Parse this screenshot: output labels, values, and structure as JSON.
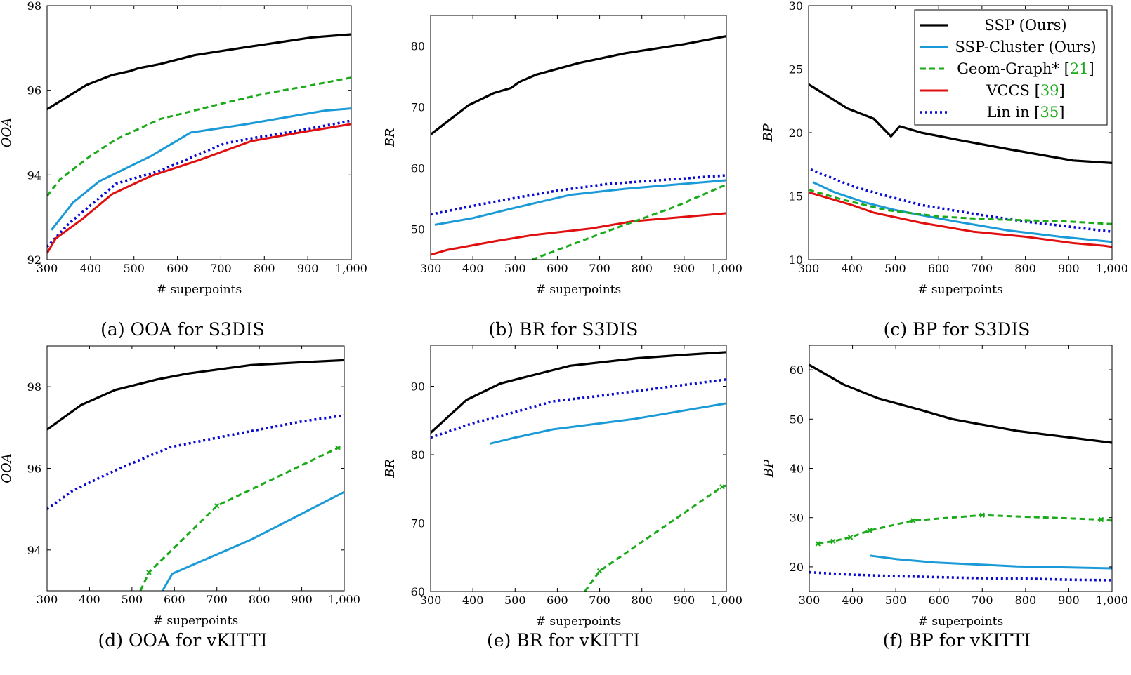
{
  "colors": {
    "ssp": "#000000",
    "ssp_cluster": "#1a9ad6",
    "geom_graph": "#1aaa1a",
    "vccs": "#e01010",
    "lin": "#0a0ad0",
    "citation": "#1aaa1a"
  },
  "legend": {
    "items": [
      {
        "key": "ssp",
        "text": "SSP (Ours)",
        "cite": ""
      },
      {
        "key": "ssp_cluster",
        "text": "SSP-Cluster (Ours)",
        "cite": ""
      },
      {
        "key": "geom_graph",
        "text": "Geom-Graph* [",
        "cite": "21"
      },
      {
        "key": "vccs",
        "text": "VCCS [",
        "cite": "39"
      },
      {
        "key": "lin",
        "text": "Lin in [",
        "cite": "35"
      }
    ]
  },
  "chart_data": [
    {
      "type": "line",
      "id": "a",
      "title": "(a) OOA for S3DIS",
      "xlabel": "# superpoints",
      "ylabel": "OOA",
      "xlim": [
        300,
        1000
      ],
      "ylim": [
        92,
        98
      ],
      "xticks": [
        300,
        400,
        500,
        600,
        700,
        800,
        900,
        1000
      ],
      "xtick_labels": [
        "300",
        "400",
        "500",
        "600",
        "700",
        "800",
        "900",
        "1,000"
      ],
      "yticks": [
        92,
        94,
        96,
        98
      ],
      "ytick_labels": [
        "92",
        "94",
        "96",
        "98"
      ],
      "series": [
        {
          "name": "SSP (Ours)",
          "key": "ssp",
          "x": [
            300,
            390,
            450,
            490,
            510,
            560,
            640,
            760,
            910,
            1000
          ],
          "y": [
            95.55,
            96.12,
            96.36,
            96.45,
            96.52,
            96.62,
            96.83,
            97.02,
            97.25,
            97.32
          ]
        },
        {
          "name": "Geom-Graph*",
          "key": "geom_graph",
          "x": [
            300,
            330,
            400,
            460,
            560,
            700,
            800,
            900,
            1000
          ],
          "y": [
            93.5,
            93.9,
            94.45,
            94.85,
            95.32,
            95.68,
            95.92,
            96.1,
            96.3
          ]
        },
        {
          "name": "SSP-Cluster (Ours)",
          "key": "ssp_cluster",
          "x": [
            310,
            360,
            420,
            540,
            630,
            760,
            860,
            940,
            1000
          ],
          "y": [
            92.7,
            93.35,
            93.85,
            94.45,
            95.0,
            95.2,
            95.38,
            95.52,
            95.57
          ]
        },
        {
          "name": "Lin in",
          "key": "lin",
          "x": [
            300,
            350,
            460,
            560,
            710,
            780,
            880,
            1000
          ],
          "y": [
            92.3,
            92.85,
            93.8,
            94.1,
            94.75,
            94.88,
            95.05,
            95.28
          ]
        },
        {
          "name": "VCCS",
          "key": "vccs",
          "x": [
            300,
            320,
            380,
            450,
            540,
            650,
            770,
            880,
            1000
          ],
          "y": [
            92.15,
            92.5,
            92.95,
            93.55,
            93.98,
            94.35,
            94.8,
            95.0,
            95.2
          ]
        }
      ]
    },
    {
      "type": "line",
      "id": "b",
      "title": "(b) BR for S3DIS",
      "xlabel": "# superpoints",
      "ylabel": "BR",
      "xlim": [
        300,
        1000
      ],
      "ylim": [
        45,
        85
      ],
      "xticks": [
        300,
        400,
        500,
        600,
        700,
        800,
        900,
        1000
      ],
      "xtick_labels": [
        "300",
        "400",
        "500",
        "600",
        "700",
        "800",
        "900",
        "1,000"
      ],
      "yticks": [
        50,
        60,
        70,
        80
      ],
      "ytick_labels": [
        "50",
        "60",
        "70",
        "80"
      ],
      "series": [
        {
          "name": "SSP (Ours)",
          "key": "ssp",
          "x": [
            300,
            390,
            450,
            470,
            490,
            510,
            550,
            650,
            760,
            900,
            1000
          ],
          "y": [
            65.5,
            70.3,
            72.3,
            72.7,
            73.1,
            74.1,
            75.3,
            77.2,
            78.8,
            80.3,
            81.6
          ]
        },
        {
          "name": "Lin in",
          "key": "lin",
          "x": [
            300,
            400,
            500,
            600,
            720,
            800,
            900,
            1000
          ],
          "y": [
            52.4,
            53.8,
            55.1,
            56.3,
            57.4,
            57.8,
            58.3,
            58.8
          ]
        },
        {
          "name": "SSP-Cluster (Ours)",
          "key": "ssp_cluster",
          "x": [
            310,
            400,
            500,
            630,
            760,
            880,
            1000
          ],
          "y": [
            50.7,
            51.8,
            53.5,
            55.6,
            56.6,
            57.3,
            58.0
          ]
        },
        {
          "name": "VCCS",
          "key": "vccs",
          "x": [
            300,
            340,
            460,
            540,
            680,
            780,
            900,
            1000
          ],
          "y": [
            45.8,
            46.6,
            48.1,
            49.0,
            50.1,
            51.3,
            52.0,
            52.6
          ]
        },
        {
          "name": "Geom-Graph*",
          "key": "geom_graph",
          "x": [
            540,
            720,
            880,
            1000
          ],
          "y": [
            45.0,
            49.7,
            53.7,
            57.3
          ]
        }
      ]
    },
    {
      "type": "line",
      "id": "c",
      "title": "(c) BP for S3DIS",
      "xlabel": "# superpoints",
      "ylabel": "BP",
      "xlim": [
        300,
        1000
      ],
      "ylim": [
        10,
        30
      ],
      "xticks": [
        300,
        400,
        500,
        600,
        700,
        800,
        900,
        1000
      ],
      "xtick_labels": [
        "300",
        "400",
        "500",
        "600",
        "700",
        "800",
        "900",
        "1,000"
      ],
      "yticks": [
        10,
        15,
        20,
        25,
        30
      ],
      "ytick_labels": [
        "10",
        "15",
        "20",
        "25",
        "30"
      ],
      "series": [
        {
          "name": "SSP (Ours)",
          "key": "ssp",
          "x": [
            300,
            390,
            450,
            490,
            510,
            560,
            650,
            760,
            910,
            1000
          ],
          "y": [
            23.8,
            21.9,
            21.1,
            19.7,
            20.5,
            20.0,
            19.4,
            18.7,
            17.8,
            17.6
          ]
        },
        {
          "name": "Lin in",
          "key": "lin",
          "x": [
            305,
            400,
            460,
            560,
            700,
            800,
            900,
            1000
          ],
          "y": [
            17.1,
            15.8,
            15.2,
            14.3,
            13.5,
            13.0,
            12.6,
            12.2
          ]
        },
        {
          "name": "SSP-Cluster (Ours)",
          "key": "ssp_cluster",
          "x": [
            310,
            360,
            430,
            500,
            560,
            640,
            760,
            880,
            1000
          ],
          "y": [
            16.1,
            15.3,
            14.5,
            13.9,
            13.5,
            13.0,
            12.3,
            11.8,
            11.4
          ]
        },
        {
          "name": "Geom-Graph*",
          "key": "geom_graph",
          "x": [
            300,
            380,
            480,
            600,
            700,
            800,
            900,
            1000
          ],
          "y": [
            15.5,
            14.7,
            13.9,
            13.4,
            13.2,
            13.1,
            13.0,
            12.8
          ]
        },
        {
          "name": "VCCS",
          "key": "vccs",
          "x": [
            300,
            400,
            450,
            560,
            680,
            800,
            910,
            980,
            1000
          ],
          "y": [
            15.3,
            14.3,
            13.7,
            12.9,
            12.2,
            11.8,
            11.3,
            11.1,
            11.0
          ]
        }
      ]
    },
    {
      "type": "line",
      "id": "d",
      "title": "(d) OOA for vKITTI",
      "xlabel": "# superpoints",
      "ylabel": "OOA",
      "xlim": [
        300,
        1000
      ],
      "ylim": [
        93,
        99
      ],
      "xticks": [
        300,
        400,
        500,
        600,
        700,
        800,
        900,
        1000
      ],
      "xtick_labels": [
        "300",
        "400",
        "500",
        "600",
        "700",
        "800",
        "900",
        "1,000"
      ],
      "yticks": [
        94,
        96,
        98
      ],
      "ytick_labels": [
        "94",
        "96",
        "98"
      ],
      "series": [
        {
          "name": "SSP (Ours)",
          "key": "ssp",
          "x": [
            300,
            380,
            460,
            560,
            630,
            780,
            900,
            1000
          ],
          "y": [
            96.95,
            97.55,
            97.92,
            98.18,
            98.32,
            98.53,
            98.6,
            98.65
          ]
        },
        {
          "name": "Lin in",
          "key": "lin",
          "x": [
            300,
            360,
            460,
            590,
            700,
            800,
            900,
            1000
          ],
          "y": [
            95.0,
            95.45,
            95.95,
            96.52,
            96.75,
            96.95,
            97.15,
            97.3
          ]
        },
        {
          "name": "Geom-Graph*",
          "key": "geom_graph",
          "x": [
            520,
            540,
            700,
            985,
            1000
          ],
          "y": [
            93.0,
            93.45,
            95.08,
            96.5,
            96.52
          ]
        },
        {
          "name": "SSP-Cluster (Ours)",
          "key": "ssp_cluster",
          "x": [
            572,
            595,
            780,
            1000
          ],
          "y": [
            93.0,
            93.42,
            94.25,
            95.42
          ]
        }
      ],
      "markers": [
        {
          "key": "geom_graph",
          "x": [
            540,
            700,
            985
          ]
        }
      ]
    },
    {
      "type": "line",
      "id": "e",
      "title": "(e) BR for vKITTI",
      "xlabel": "# superpoints",
      "ylabel": "BR",
      "xlim": [
        300,
        1000
      ],
      "ylim": [
        60,
        96
      ],
      "xticks": [
        300,
        400,
        500,
        600,
        700,
        800,
        900,
        1000
      ],
      "xtick_labels": [
        "300",
        "400",
        "500",
        "600",
        "700",
        "800",
        "900",
        "1,000"
      ],
      "yticks": [
        60,
        70,
        80,
        90
      ],
      "ytick_labels": [
        "60",
        "70",
        "80",
        "90"
      ],
      "series": [
        {
          "name": "SSP (Ours)",
          "key": "ssp",
          "x": [
            300,
            385,
            465,
            560,
            630,
            790,
            900,
            1000
          ],
          "y": [
            83.2,
            88.0,
            90.4,
            91.9,
            93.0,
            94.1,
            94.6,
            95.0
          ]
        },
        {
          "name": "Lin in",
          "key": "lin",
          "x": [
            300,
            400,
            480,
            590,
            700,
            800,
            900,
            1000
          ],
          "y": [
            82.5,
            84.6,
            85.9,
            87.8,
            88.6,
            89.4,
            90.2,
            91.0
          ]
        },
        {
          "name": "SSP-Cluster (Ours)",
          "key": "ssp_cluster",
          "x": [
            440,
            500,
            590,
            780,
            1000
          ],
          "y": [
            81.6,
            82.5,
            83.7,
            85.2,
            87.5
          ]
        },
        {
          "name": "Geom-Graph*",
          "key": "geom_graph",
          "x": [
            665,
            700,
            990,
            1000
          ],
          "y": [
            60.0,
            63.0,
            75.3,
            75.5
          ]
        }
      ],
      "markers": [
        {
          "key": "geom_graph",
          "x": [
            700,
            990
          ]
        }
      ]
    },
    {
      "type": "line",
      "id": "f",
      "title": "(f) BP for vKITTI",
      "xlabel": "# superpoints",
      "ylabel": "BP",
      "xlim": [
        300,
        1000
      ],
      "ylim": [
        15,
        65
      ],
      "xticks": [
        300,
        400,
        500,
        600,
        700,
        800,
        900,
        1000
      ],
      "xtick_labels": [
        "300",
        "400",
        "500",
        "600",
        "700",
        "800",
        "900",
        "1,000"
      ],
      "yticks": [
        20,
        30,
        40,
        50,
        60
      ],
      "ytick_labels": [
        "20",
        "30",
        "40",
        "50",
        "60"
      ],
      "series": [
        {
          "name": "SSP (Ours)",
          "key": "ssp",
          "x": [
            300,
            380,
            460,
            560,
            630,
            780,
            900,
            1000
          ],
          "y": [
            61.0,
            57.0,
            54.2,
            51.8,
            50.0,
            47.6,
            46.3,
            45.2
          ]
        },
        {
          "name": "Geom-Graph*",
          "key": "geom_graph",
          "x": [
            320,
            355,
            395,
            440,
            540,
            700,
            975,
            1000
          ],
          "y": [
            24.7,
            25.2,
            26.0,
            27.4,
            29.4,
            30.5,
            29.6,
            29.4
          ]
        },
        {
          "name": "SSP-Cluster (Ours)",
          "key": "ssp_cluster",
          "x": [
            440,
            500,
            590,
            780,
            1000
          ],
          "y": [
            22.3,
            21.6,
            20.9,
            20.1,
            19.7
          ]
        },
        {
          "name": "Lin in",
          "key": "lin",
          "x": [
            300,
            400,
            500,
            600,
            700,
            800,
            900,
            1000
          ],
          "y": [
            18.9,
            18.4,
            18.1,
            17.9,
            17.7,
            17.6,
            17.4,
            17.3
          ]
        }
      ],
      "markers": [
        {
          "key": "geom_graph",
          "x": [
            320,
            355,
            395,
            440,
            540,
            700,
            975
          ]
        }
      ]
    }
  ]
}
